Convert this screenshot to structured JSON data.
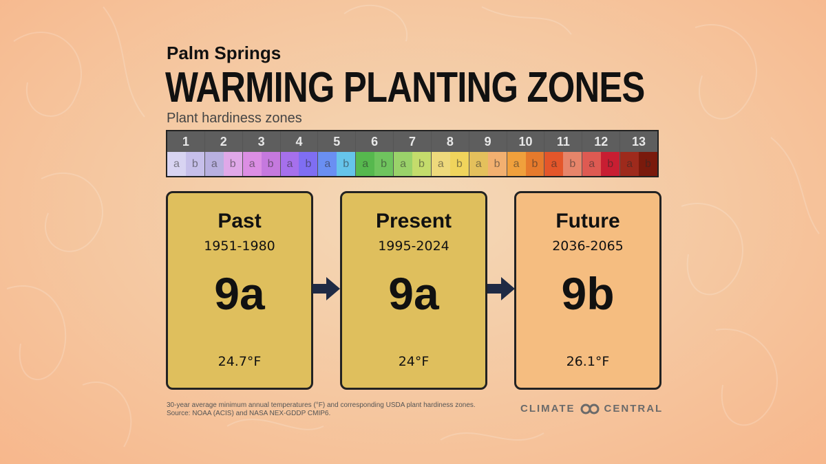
{
  "header": {
    "city": "Palm Springs",
    "title": "WARMING PLANTING ZONES",
    "subtitle": "Plant hardiness zones"
  },
  "zone_bar": {
    "half_labels": [
      "a",
      "b"
    ],
    "zones": [
      {
        "number": "1",
        "a_color": "#d8d4f2",
        "b_color": "#c6bfea"
      },
      {
        "number": "2",
        "a_color": "#b8b0e0",
        "b_color": "#e0a8e8"
      },
      {
        "number": "3",
        "a_color": "#dc8ee4",
        "b_color": "#c579de"
      },
      {
        "number": "4",
        "a_color": "#a670ec",
        "b_color": "#7f6ef2"
      },
      {
        "number": "5",
        "a_color": "#6a8ff2",
        "b_color": "#66c4ea"
      },
      {
        "number": "6",
        "a_color": "#56b84e",
        "b_color": "#6fc45e"
      },
      {
        "number": "7",
        "a_color": "#9ad26a",
        "b_color": "#c4dc6c"
      },
      {
        "number": "8",
        "a_color": "#eed97c",
        "b_color": "#f0d45c"
      },
      {
        "number": "9",
        "a_color": "#e4c05c",
        "b_color": "#f2b070"
      },
      {
        "number": "10",
        "a_color": "#f0a03c",
        "b_color": "#e67a2c"
      },
      {
        "number": "11",
        "a_color": "#e4562a",
        "b_color": "#e7856a"
      },
      {
        "number": "12",
        "a_color": "#de5a52",
        "b_color": "#c81e32"
      },
      {
        "number": "13",
        "a_color": "#9e2a1c",
        "b_color": "#7a1a0c"
      }
    ]
  },
  "cards": [
    {
      "label": "Past",
      "years": "1951-1980",
      "zone": "9a",
      "temp": "24.7°F",
      "color": "#dfbf5d"
    },
    {
      "label": "Present",
      "years": "1995-2024",
      "zone": "9a",
      "temp": "24°F",
      "color": "#dfbf5d"
    },
    {
      "label": "Future",
      "years": "2036-2065",
      "zone": "9b",
      "temp": "26.1°F",
      "color": "#f5bd80"
    }
  ],
  "footer": {
    "note_line1": "30-year average minimum annual temperatures (°F) and corresponding USDA plant hardiness zones.",
    "note_line2": "Source: NOAA (ACIS) and NASA NEX-GDDP CMIP6.",
    "logo_left": "CLIMATE",
    "logo_right": "CENTRAL"
  },
  "colors": {
    "arrow": "#1f2a44",
    "card_border": "#222222",
    "zone_header": "#5e5e5e"
  },
  "icons": {
    "arrow": "right-arrow-icon",
    "logo": "climate-central-logo-icon"
  }
}
